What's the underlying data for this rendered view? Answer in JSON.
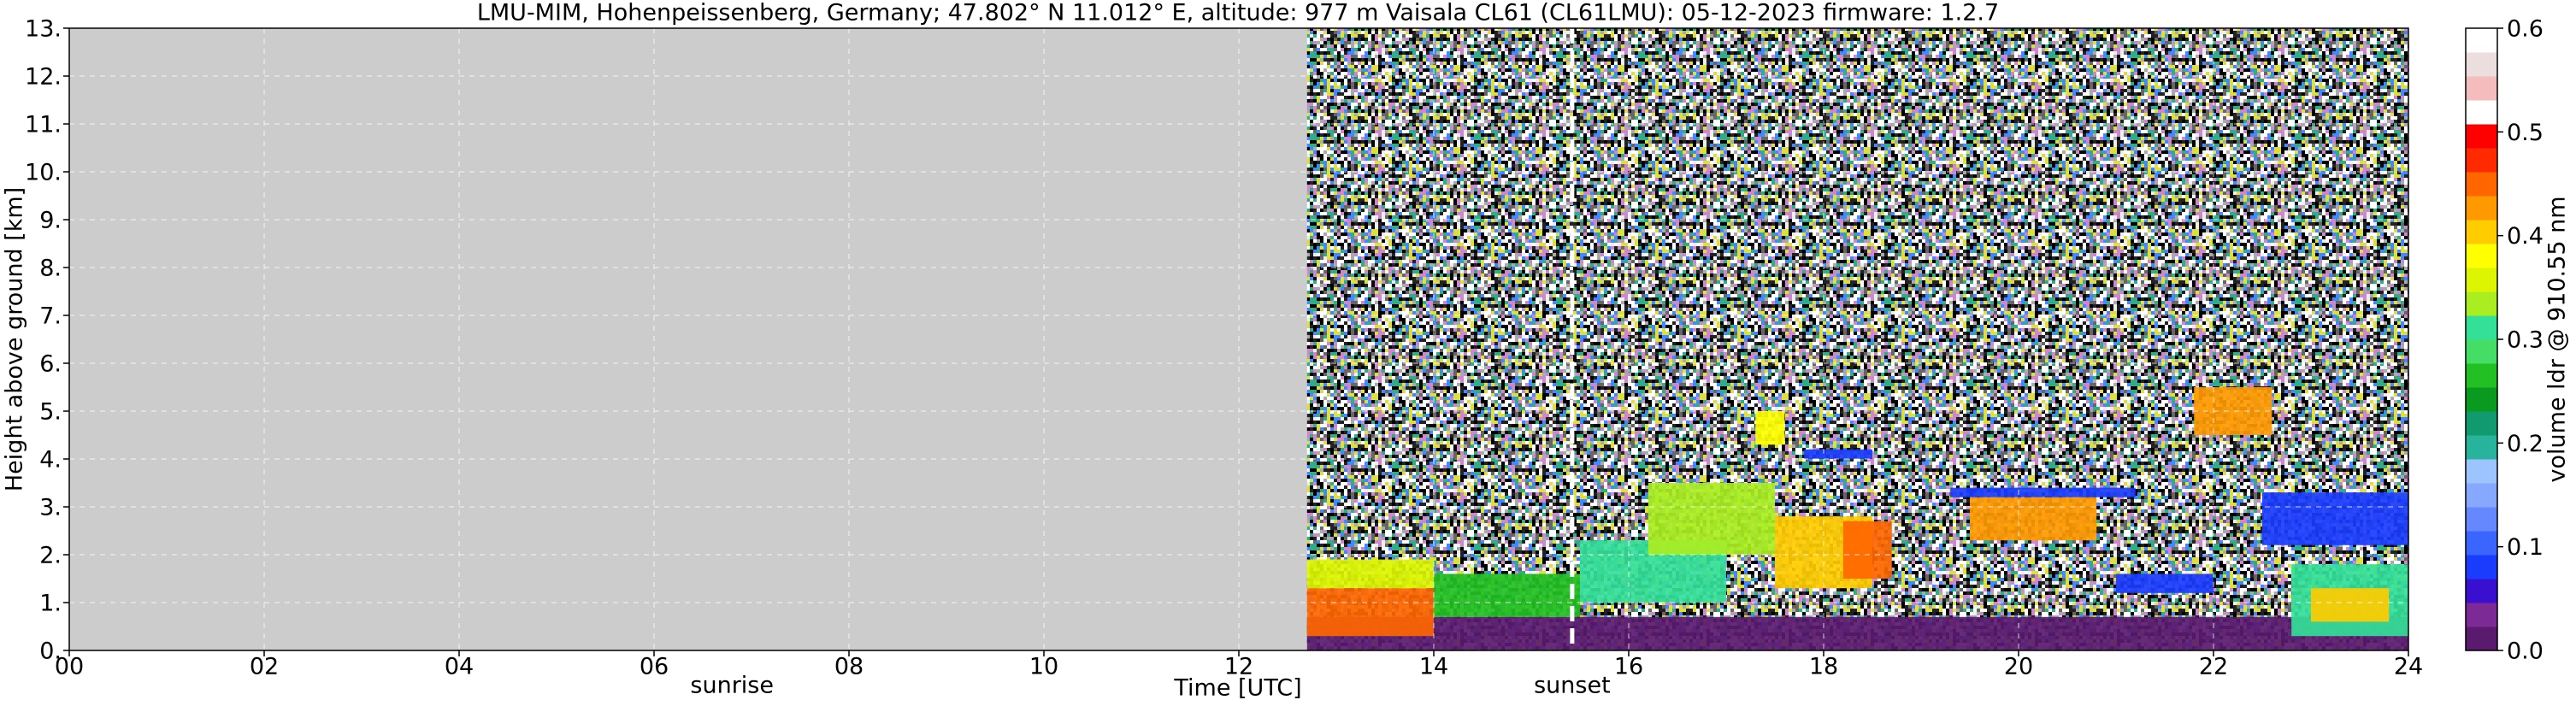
{
  "chart_data": {
    "type": "heatmap",
    "title": "LMU-MIM, Hohenpeissenberg, Germany; 47.802° N 11.012° E, altitude: 977 m    Vaisala CL61 (CL61LMU): 05-12-2023    firmware: 1.2.7",
    "xlabel": "Time [UTC]",
    "ylabel": "Height above ground [km]",
    "colorbar_label": "volume ldr @ 910.55 nm",
    "xlim": [
      0,
      24
    ],
    "ylim": [
      0,
      13
    ],
    "xticks": [
      {
        "value": 0,
        "label": "00"
      },
      {
        "value": 2,
        "label": "02"
      },
      {
        "value": 4,
        "label": "04"
      },
      {
        "value": 6,
        "label": "06"
      },
      {
        "value": 8,
        "label": "08"
      },
      10,
      12,
      14,
      16,
      18,
      20,
      22,
      24
    ],
    "yticks": [
      {
        "value": 0,
        "label": "0."
      },
      {
        "value": 1,
        "label": "1."
      },
      {
        "value": 2,
        "label": "2."
      },
      {
        "value": 3,
        "label": "3."
      },
      {
        "value": 4,
        "label": "4."
      },
      {
        "value": 5,
        "label": "5."
      },
      {
        "value": 6,
        "label": "6."
      },
      {
        "value": 7,
        "label": "7."
      },
      {
        "value": 8,
        "label": "8."
      },
      {
        "value": 9,
        "label": "9."
      },
      {
        "value": 10,
        "label": "10."
      },
      {
        "value": 11,
        "label": "11."
      },
      {
        "value": 12,
        "label": "12."
      },
      {
        "value": 13,
        "label": "13."
      }
    ],
    "grid": true,
    "missing_color": "#cccccc",
    "data_xrange": [
      12.7,
      24
    ],
    "clim": [
      0,
      0.6
    ],
    "cticks": [
      {
        "value": 0,
        "label": "0.0"
      },
      0.1,
      0.2,
      0.3,
      0.4,
      0.5,
      0.6
    ],
    "colorscale": [
      "#5a1a6e",
      "#7d2a96",
      "#3a10d0",
      "#1a3cff",
      "#3a66ff",
      "#6688ff",
      "#88a8ff",
      "#9cc4ff",
      "#28b49c",
      "#109a6e",
      "#0a9a20",
      "#22c022",
      "#44dd66",
      "#33e098",
      "#aaee22",
      "#ddf500",
      "#ffff00",
      "#ffcc00",
      "#ff9900",
      "#ff6600",
      "#ff2a00",
      "#ff0000",
      "#ffffff",
      "#f4bcbc",
      "#ecdede",
      "#ffffff"
    ],
    "features": [
      {
        "x": [
          12.7,
          24
        ],
        "y": [
          0,
          0.7
        ],
        "value": 0.02
      },
      {
        "x": [
          12.7,
          14
        ],
        "y": [
          0.3,
          1.3
        ],
        "value": 0.45
      },
      {
        "x": [
          12.7,
          14
        ],
        "y": [
          1.3,
          1.9
        ],
        "value": 0.35
      },
      {
        "x": [
          14,
          15.5
        ],
        "y": [
          0.7,
          1.6
        ],
        "value": 0.27
      },
      {
        "x": [
          15.5,
          17
        ],
        "y": [
          1.0,
          2.3
        ],
        "value": 0.3
      },
      {
        "x": [
          16.2,
          17.5
        ],
        "y": [
          2.0,
          3.5
        ],
        "value": 0.33
      },
      {
        "x": [
          17.3,
          17.6
        ],
        "y": [
          4.3,
          5.0
        ],
        "value": 0.37
      },
      {
        "x": [
          17.5,
          18.5
        ],
        "y": [
          1.3,
          2.8
        ],
        "value": 0.4
      },
      {
        "x": [
          18.2,
          18.7
        ],
        "y": [
          1.5,
          2.7
        ],
        "value": 0.46
      },
      {
        "x": [
          17.8,
          18.5
        ],
        "y": [
          4.0,
          4.2
        ],
        "value": 0.08
      },
      {
        "x": [
          19.3,
          21.2
        ],
        "y": [
          3.2,
          3.4
        ],
        "value": 0.07
      },
      {
        "x": [
          19.5,
          20.8
        ],
        "y": [
          2.3,
          3.2
        ],
        "value": 0.42
      },
      {
        "x": [
          21.8,
          22.6
        ],
        "y": [
          4.5,
          5.5
        ],
        "value": 0.43
      },
      {
        "x": [
          21,
          22
        ],
        "y": [
          1.2,
          1.6
        ],
        "value": 0.08
      },
      {
        "x": [
          22.5,
          24
        ],
        "y": [
          2.2,
          3.3
        ],
        "value": 0.08
      },
      {
        "x": [
          22.8,
          24
        ],
        "y": [
          0.3,
          1.8
        ],
        "value": 0.3
      },
      {
        "x": [
          23,
          23.8
        ],
        "y": [
          0.6,
          1.3
        ],
        "value": 0.4
      }
    ],
    "annotations": [
      {
        "text": "sunrise",
        "x": 6.8,
        "line": false
      },
      {
        "text": "sunset",
        "x": 15.42,
        "line": true
      }
    ]
  }
}
